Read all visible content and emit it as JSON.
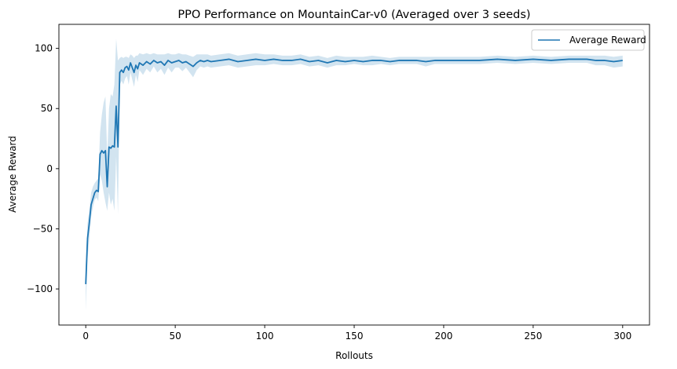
{
  "chart_data": {
    "type": "line",
    "title": "PPO Performance on MountainCar-v0 (Averaged over 3 seeds)",
    "xlabel": "Rollouts",
    "ylabel": "Average Reward",
    "xlim": [
      -15,
      315
    ],
    "ylim": [
      -130,
      120
    ],
    "xticks": [
      0,
      50,
      100,
      150,
      200,
      250,
      300
    ],
    "yticks": [
      -100,
      -50,
      0,
      50,
      100
    ],
    "grid": false,
    "legend": {
      "placement": "top-right",
      "entries": [
        "Average Reward"
      ]
    },
    "colors": {
      "line": "#1f77b4",
      "band": "#1f77b4"
    },
    "series": [
      {
        "name": "Average Reward",
        "x": [
          0,
          1,
          2,
          3,
          4,
          5,
          6,
          7,
          8,
          9,
          10,
          11,
          12,
          13,
          14,
          15,
          16,
          17,
          18,
          19,
          20,
          21,
          22,
          23,
          24,
          25,
          26,
          27,
          28,
          29,
          30,
          32,
          34,
          36,
          38,
          40,
          42,
          44,
          46,
          48,
          50,
          52,
          54,
          56,
          58,
          60,
          62,
          64,
          66,
          68,
          70,
          75,
          80,
          85,
          90,
          95,
          100,
          105,
          110,
          115,
          120,
          125,
          130,
          135,
          140,
          145,
          150,
          155,
          160,
          165,
          170,
          175,
          180,
          185,
          190,
          195,
          200,
          210,
          220,
          230,
          240,
          250,
          260,
          270,
          280,
          285,
          290,
          295,
          300
        ],
        "y": [
          -96,
          -58,
          -45,
          -30,
          -25,
          -20,
          -18,
          -19,
          12,
          15,
          13,
          15,
          -15,
          18,
          17,
          19,
          18,
          52,
          18,
          80,
          82,
          80,
          84,
          85,
          82,
          88,
          84,
          80,
          86,
          83,
          88,
          86,
          89,
          87,
          90,
          88,
          89,
          86,
          90,
          88,
          89,
          90,
          88,
          89,
          87,
          85,
          88,
          90,
          89,
          90,
          89,
          90,
          91,
          89,
          90,
          91,
          90,
          91,
          90,
          90,
          91,
          89,
          90,
          88,
          90,
          89,
          90,
          89,
          90,
          90,
          89,
          90,
          90,
          90,
          89,
          90,
          90,
          90,
          90,
          91,
          90,
          91,
          90,
          91,
          91,
          90,
          90,
          89,
          90
        ],
        "lower": [
          -118,
          -75,
          -58,
          -40,
          -32,
          -26,
          -24,
          -27,
          -5,
          -10,
          -20,
          -28,
          -35,
          -20,
          -30,
          -25,
          -35,
          10,
          -38,
          70,
          73,
          70,
          75,
          77,
          70,
          80,
          74,
          68,
          78,
          72,
          82,
          78,
          83,
          80,
          85,
          80,
          83,
          78,
          84,
          80,
          84,
          84,
          81,
          84,
          80,
          76,
          82,
          85,
          84,
          85,
          84,
          85,
          86,
          84,
          85,
          86,
          86,
          87,
          86,
          86,
          87,
          85,
          86,
          84,
          86,
          86,
          87,
          86,
          86,
          87,
          86,
          87,
          87,
          87,
          85,
          87,
          87,
          87,
          87,
          88,
          87,
          88,
          87,
          88,
          88,
          86,
          86,
          84,
          85
        ],
        "upper": [
          -80,
          -45,
          -35,
          -20,
          -15,
          -12,
          -10,
          -8,
          30,
          45,
          55,
          60,
          10,
          50,
          62,
          60,
          70,
          108,
          90,
          92,
          93,
          92,
          93,
          93,
          92,
          95,
          94,
          92,
          94,
          94,
          96,
          95,
          96,
          95,
          96,
          95,
          95,
          95,
          96,
          95,
          95,
          96,
          95,
          95,
          94,
          93,
          95,
          95,
          95,
          95,
          94,
          95,
          96,
          94,
          95,
          96,
          95,
          95,
          94,
          94,
          95,
          93,
          94,
          92,
          94,
          93,
          93,
          93,
          94,
          93,
          92,
          93,
          93,
          93,
          93,
          93,
          93,
          93,
          93,
          94,
          93,
          94,
          93,
          94,
          94,
          94,
          94,
          93,
          94
        ]
      }
    ]
  }
}
